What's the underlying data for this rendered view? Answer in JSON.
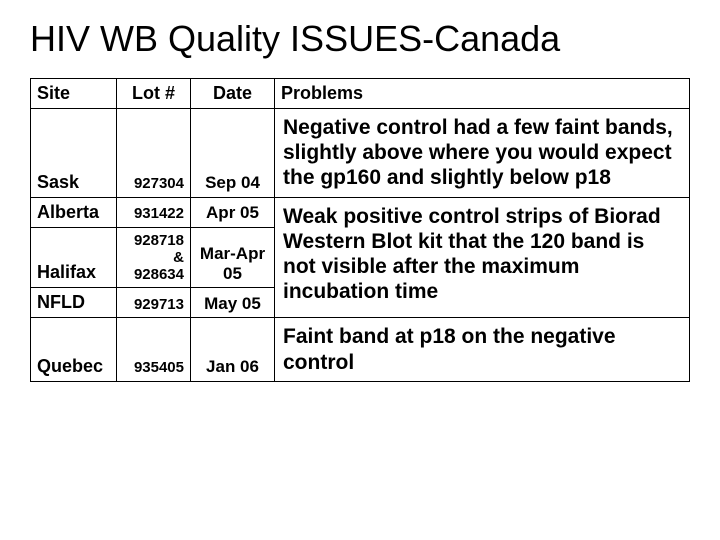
{
  "title": "HIV WB Quality ISSUES-Canada",
  "columns": [
    "Site",
    "Lot #",
    "Date",
    "Problems"
  ],
  "rows": {
    "r0": {
      "site": "Sask",
      "lot": "927304",
      "date": "Sep 04",
      "problem": "Negative control had a few faint bands, slightly above where you would expect the gp160 and slightly below p18"
    },
    "r1": {
      "site": "Alberta",
      "lot": "931422",
      "date": "Apr 05"
    },
    "r2": {
      "site": "Halifax",
      "lot": "928718 & 928634",
      "date": "Mar-Apr 05",
      "problem": "Weak positive control strips of Biorad Western Blot kit that the 120 band is not visible after the maximum incubation time"
    },
    "r3": {
      "site": "NFLD",
      "lot": "929713",
      "date": "May 05"
    },
    "r4": {
      "site": "Quebec",
      "lot": "935405",
      "date": "Jan 06",
      "problem": "Faint band at p18 on the negative control"
    }
  },
  "style": {
    "title_fontsize": 36,
    "header_fontsize": 18,
    "site_fontsize": 18,
    "lot_fontsize": 15,
    "date_fontsize": 17,
    "problem_fontsize": 21,
    "border_color": "#000000",
    "background_color": "#ffffff",
    "text_color": "#000000",
    "font_family": "Arial"
  }
}
